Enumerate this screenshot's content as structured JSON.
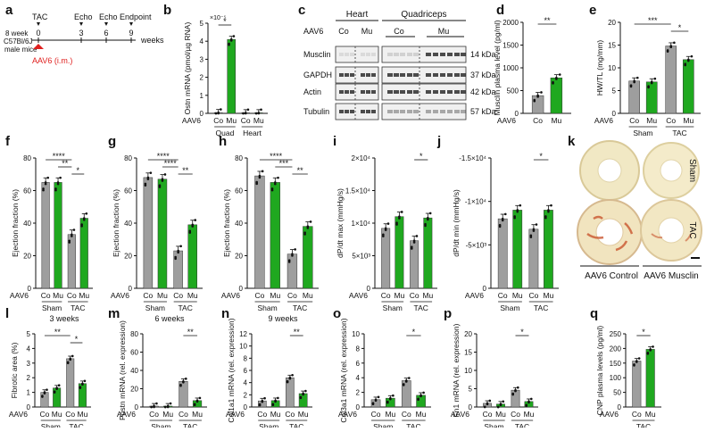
{
  "colors": {
    "control": "#9e9e9e",
    "musclin": "#1fa81f",
    "aav_arrow": "#e0201f"
  },
  "label_aav6": "AAV6",
  "panel_a": {
    "letter": "a",
    "events": [
      {
        "label": "TAC",
        "week": "0"
      },
      {
        "label": "Echo",
        "week": "3"
      },
      {
        "label": "Echo",
        "week": "6"
      },
      {
        "label": "Endpoint",
        "week": "9"
      }
    ],
    "axis_unit": "weeks",
    "mice": [
      "8 week",
      "C57Bl/6J",
      "male mice"
    ],
    "injection": "AAV6 (i.m.)"
  },
  "panel_c": {
    "letter": "c",
    "tissues": [
      "Heart",
      "Quadriceps"
    ],
    "groups": [
      "Co",
      "Mu",
      "Co",
      "Mu"
    ],
    "rows": [
      {
        "protein": "Musclin",
        "kda": "14 kDa"
      },
      {
        "protein": "GAPDH",
        "kda": "37 kDa"
      },
      {
        "protein": "Actin",
        "kda": "42 kDa"
      },
      {
        "protein": "Tubulin",
        "kda": "57 kDa"
      }
    ]
  },
  "panel_k": {
    "letter": "k",
    "rows": [
      "Sham",
      "TAC"
    ],
    "cols": [
      "AAV6 Control",
      "AAV6 Musclin"
    ]
  },
  "chart_data": [
    {
      "id": "b",
      "letter": "b",
      "type": "bar",
      "ylabel": "Ostn mRNA (pmol/µg RNA)",
      "yexp": "×10⁻⁵",
      "ticks": [
        0,
        1,
        2,
        3,
        4,
        5
      ],
      "ylim": [
        0,
        5
      ],
      "groups": [
        {
          "label": "Quad",
          "values": [
            0.04,
            4.1
          ]
        },
        {
          "label": "Heart",
          "values": [
            0.03,
            0.03
          ]
        }
      ],
      "sig": [
        {
          "text": "*",
          "a": 0,
          "b": 1
        }
      ]
    },
    {
      "id": "d",
      "letter": "d",
      "type": "bar",
      "ylabel": "Musclin plasma level (pg/ml)",
      "ticks": [
        0,
        500,
        1000,
        1500,
        2000
      ],
      "ylim": [
        0,
        2000
      ],
      "groups": [
        {
          "label": "",
          "values": [
            390,
            780
          ]
        }
      ],
      "sig": [
        {
          "text": "**",
          "a": 0,
          "b": 1
        }
      ]
    },
    {
      "id": "e",
      "letter": "e",
      "type": "bar",
      "ylabel": "HW/TL (mg/mm)",
      "ticks": [
        0,
        5,
        10,
        15,
        20
      ],
      "ylim": [
        0,
        20
      ],
      "groups": [
        {
          "label": "Sham",
          "values": [
            7.1,
            6.9
          ]
        },
        {
          "label": "TAC",
          "values": [
            14.8,
            11.8
          ]
        }
      ],
      "sig": [
        {
          "text": "***",
          "a": 0,
          "b": 2
        },
        {
          "text": "*",
          "a": 2,
          "b": 3
        }
      ]
    },
    {
      "id": "f",
      "letter": "f",
      "type": "bar",
      "ylabel": "Ejection fraction (%)",
      "subtitle": "3 weeks",
      "ticks": [
        0,
        20,
        40,
        60,
        80
      ],
      "ylim": [
        0,
        80
      ],
      "groups": [
        {
          "label": "Sham",
          "values": [
            65,
            65
          ]
        },
        {
          "label": "TAC",
          "values": [
            33,
            43
          ]
        }
      ],
      "sig": [
        {
          "text": "****",
          "a": 0,
          "b": 2
        },
        {
          "text": "**",
          "a": 1,
          "b": 2
        },
        {
          "text": "*",
          "a": 2,
          "b": 3
        }
      ]
    },
    {
      "id": "g",
      "letter": "g",
      "type": "bar",
      "ylabel": "Ejection fraction (%)",
      "subtitle": "6 weeks",
      "ticks": [
        0,
        20,
        40,
        60,
        80
      ],
      "ylim": [
        0,
        80
      ],
      "groups": [
        {
          "label": "Sham",
          "values": [
            68,
            67
          ]
        },
        {
          "label": "TAC",
          "values": [
            23,
            39
          ]
        }
      ],
      "sig": [
        {
          "text": "****",
          "a": 0,
          "b": 2
        },
        {
          "text": "****",
          "a": 1,
          "b": 2
        },
        {
          "text": "**",
          "a": 2,
          "b": 3
        }
      ]
    },
    {
      "id": "h",
      "letter": "h",
      "type": "bar",
      "ylabel": "Ejection fraction (%)",
      "subtitle": "9 weeks",
      "ticks": [
        0,
        20,
        40,
        60,
        80
      ],
      "ylim": [
        0,
        80
      ],
      "groups": [
        {
          "label": "Sham",
          "values": [
            69,
            65
          ]
        },
        {
          "label": "TAC",
          "values": [
            21,
            38
          ]
        }
      ],
      "sig": [
        {
          "text": "****",
          "a": 0,
          "b": 2
        },
        {
          "text": "***",
          "a": 1,
          "b": 2
        },
        {
          "text": "**",
          "a": 2,
          "b": 3
        }
      ]
    },
    {
      "id": "i",
      "letter": "i",
      "type": "bar",
      "ylabel": "dP/dt max (mmHg/s)",
      "ticks": [
        0,
        5000,
        10000,
        15000,
        20000
      ],
      "tickLabels": [
        "0",
        "5×10³",
        "1×10⁴",
        "1.5×10⁴",
        "2×10⁴"
      ],
      "ylim": [
        0,
        20000
      ],
      "groups": [
        {
          "label": "Sham",
          "values": [
            9200,
            11000
          ]
        },
        {
          "label": "TAC",
          "values": [
            7300,
            10800
          ]
        }
      ],
      "sig": [
        {
          "text": "*",
          "a": 2,
          "b": 3
        }
      ]
    },
    {
      "id": "j",
      "letter": "j",
      "type": "bar",
      "ylabel": "dP/dt min (mmHg/s)",
      "ticks": [
        0,
        5000,
        10000,
        15000
      ],
      "tickLabels": [
        "0",
        "-5×10³",
        "-1×10⁴",
        "-1.5×10⁴"
      ],
      "ylim": [
        0,
        15000
      ],
      "groups": [
        {
          "label": "Sham",
          "values": [
            8000,
            9000
          ]
        },
        {
          "label": "TAC",
          "values": [
            6800,
            9000
          ]
        }
      ],
      "sig": [
        {
          "text": "*",
          "a": 2,
          "b": 3
        }
      ]
    },
    {
      "id": "l",
      "letter": "l",
      "type": "bar",
      "ylabel": "Fibrotic area (%)",
      "ticks": [
        0,
        1,
        2,
        3,
        4,
        5
      ],
      "ylim": [
        0,
        5
      ],
      "groups": [
        {
          "label": "Sham",
          "values": [
            1.0,
            1.3
          ]
        },
        {
          "label": "TAC",
          "values": [
            3.3,
            1.6
          ]
        }
      ],
      "sig": [
        {
          "text": "**",
          "a": 0,
          "b": 2
        },
        {
          "text": "*",
          "a": 2,
          "b": 3
        }
      ]
    },
    {
      "id": "m",
      "letter": "m",
      "type": "bar",
      "ylabel": "Postn mRNA (rel. expression)",
      "ticks": [
        0,
        20,
        40,
        60,
        80
      ],
      "ylim": [
        0,
        80
      ],
      "groups": [
        {
          "label": "Sham",
          "values": [
            1,
            1
          ]
        },
        {
          "label": "TAC",
          "values": [
            28,
            7
          ]
        }
      ],
      "sig": [
        {
          "text": "**",
          "a": 2,
          "b": 3
        }
      ]
    },
    {
      "id": "n",
      "letter": "n",
      "type": "bar",
      "ylabel": "Col1a1 mRNA (rel. expression)",
      "ticks": [
        0,
        2,
        4,
        6,
        8,
        10,
        12
      ],
      "ylim": [
        0,
        12
      ],
      "groups": [
        {
          "label": "Sham",
          "values": [
            1,
            1.05
          ]
        },
        {
          "label": "TAC",
          "values": [
            4.8,
            2.2
          ]
        }
      ],
      "sig": [
        {
          "text": "**",
          "a": 2,
          "b": 3
        }
      ]
    },
    {
      "id": "o",
      "letter": "o",
      "type": "bar",
      "ylabel": "Col3a1 mRNA (rel. expression)",
      "ticks": [
        0,
        2,
        4,
        6,
        8,
        10
      ],
      "ylim": [
        0,
        10
      ],
      "groups": [
        {
          "label": "Sham",
          "values": [
            1,
            1.2
          ]
        },
        {
          "label": "TAC",
          "values": [
            3.6,
            1.6
          ]
        }
      ],
      "sig": [
        {
          "text": "*",
          "a": 2,
          "b": 3
        }
      ]
    },
    {
      "id": "p",
      "letter": "p",
      "type": "bar",
      "ylabel": "Fn1 mRNA (rel. expression)",
      "ticks": [
        0,
        5,
        10,
        15,
        20
      ],
      "ylim": [
        0,
        20
      ],
      "groups": [
        {
          "label": "Sham",
          "values": [
            1,
            0.8
          ]
        },
        {
          "label": "TAC",
          "values": [
            4.6,
            1.5
          ]
        }
      ],
      "sig": [
        {
          "text": "*",
          "a": 2,
          "b": 3
        }
      ]
    },
    {
      "id": "q",
      "letter": "q",
      "type": "bar",
      "ylabel": "CNP plasma levels (pg/ml)",
      "ticks": [
        0,
        50,
        100,
        150,
        200,
        250
      ],
      "ylim": [
        0,
        250
      ],
      "groups": [
        {
          "label": "TAC",
          "values": [
            157,
            197
          ]
        }
      ],
      "sig": [
        {
          "text": "*",
          "a": 0,
          "b": 1
        }
      ]
    }
  ]
}
